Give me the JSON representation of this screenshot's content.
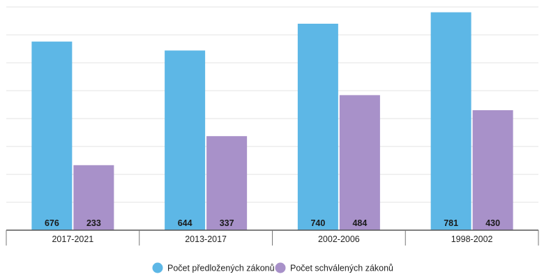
{
  "chart_data": {
    "type": "bar",
    "categories": [
      "2017-2021",
      "2013-2017",
      "2002-2006",
      "1998-2002"
    ],
    "series": [
      {
        "name": "Počet předložených zákonů",
        "values": [
          676,
          644,
          740,
          781
        ],
        "color": "#5db7e6"
      },
      {
        "name": "Počet schválených zákonů",
        "values": [
          233,
          337,
          484,
          430
        ],
        "color": "#a891c9"
      }
    ],
    "ylim": [
      0,
      800
    ],
    "grid": true,
    "legend_position": "bottom-center",
    "data_labels": "inside-bottom"
  }
}
